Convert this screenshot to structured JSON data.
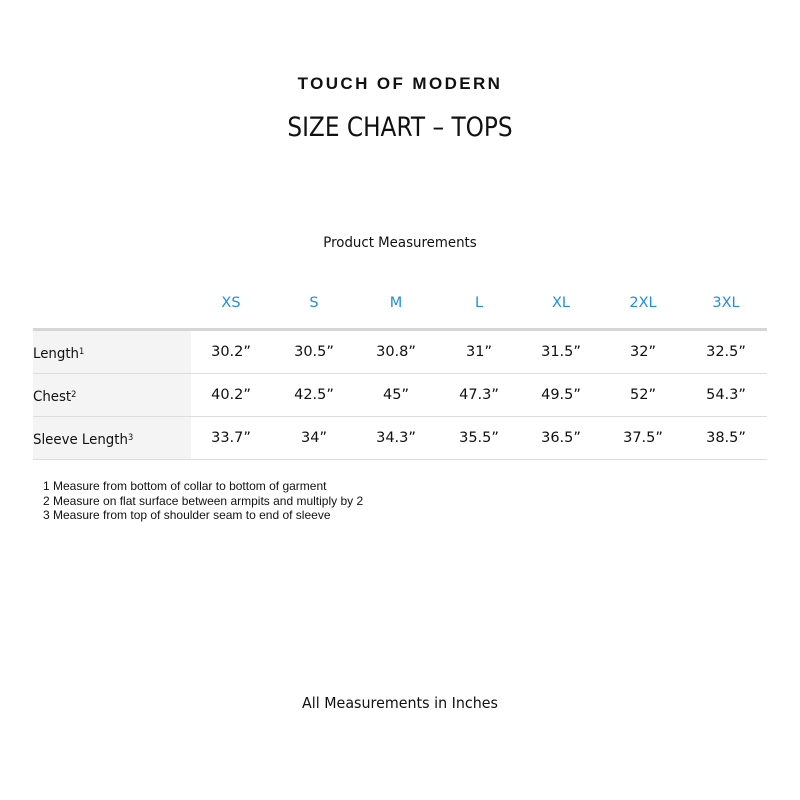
{
  "brand": "TOUCH OF MODERN",
  "title": "SIZE CHART – TOPS",
  "subtitle": "Product Measurements",
  "accent_color": "#1f8fdc",
  "sizes": [
    "XS",
    "S",
    "M",
    "L",
    "XL",
    "2XL",
    "3XL"
  ],
  "rows": [
    {
      "label": "Length",
      "note": "1",
      "values": [
        "30.2”",
        "30.5”",
        "30.8”",
        "31”",
        "31.5”",
        "32”",
        "32.5”"
      ]
    },
    {
      "label": "Chest",
      "note": "2",
      "values": [
        "40.2”",
        "42.5”",
        "45”",
        "47.3”",
        "49.5”",
        "52”",
        "54.3”"
      ]
    },
    {
      "label": "Sleeve Length",
      "note": "3",
      "values": [
        "33.7”",
        "34”",
        "34.3”",
        "35.5”",
        "36.5”",
        "37.5”",
        "38.5”"
      ]
    }
  ],
  "notes": [
    "1 Measure from bottom of collar to bottom of garment",
    "2 Measure on flat surface between armpits and multiply by 2",
    "3 Measure from top of shoulder seam to end of sleeve"
  ],
  "footer": "All Measurements in Inches"
}
